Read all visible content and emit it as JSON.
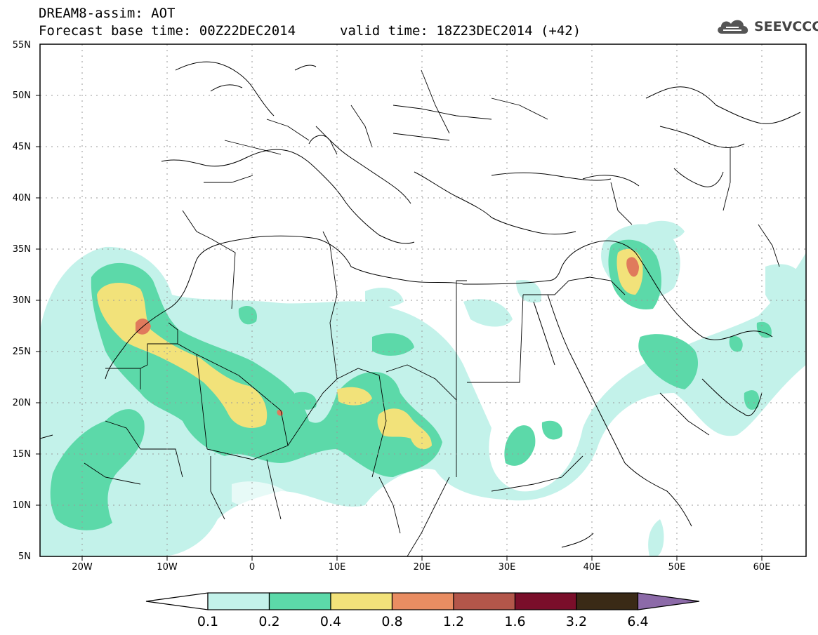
{
  "header": {
    "title": "DREAM8-assim: AOT",
    "base_time": "Forecast base time: 00Z22DEC2014",
    "valid_time": "valid time: 18Z23DEC2014 (+42)",
    "logo_text": "SEEVCCC"
  },
  "map": {
    "lon_range": [
      -25,
      65
    ],
    "lat_range": [
      5,
      55
    ],
    "lat_labels": [
      "5N",
      "10N",
      "15N",
      "20N",
      "25N",
      "30N",
      "35N",
      "40N",
      "45N",
      "50N",
      "55N"
    ],
    "lon_labels": [
      "20W",
      "10W",
      "0",
      "10E",
      "20E",
      "30E",
      "40E",
      "50E",
      "60E"
    ],
    "grid": "dotted",
    "region": "North Africa, Europe, Middle East"
  },
  "colorbar": {
    "labels": [
      "0.1",
      "0.2",
      "0.4",
      "0.8",
      "1.2",
      "1.6",
      "3.2",
      "6.4"
    ],
    "colors": [
      "#c3f2ea",
      "#5cd9a9",
      "#f2e27a",
      "#e98d62",
      "#b3564a",
      "#7a0e2a",
      "#3a2a16",
      "#8c6aa8"
    ],
    "under_color": "#ffffff"
  },
  "overlay_colors": {
    "level1": "#c3f2ea",
    "level2": "#5cd9a9",
    "level3": "#f2e27a",
    "level4": "#e07a5c"
  }
}
